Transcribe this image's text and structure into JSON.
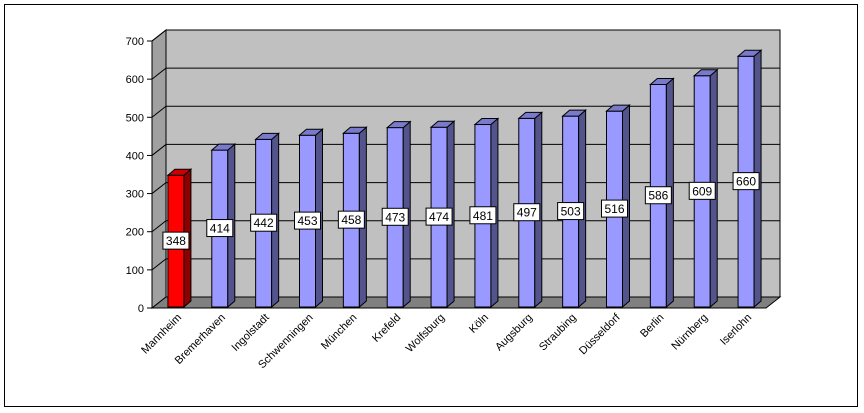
{
  "chart_data": {
    "type": "bar",
    "title": "",
    "xlabel": "",
    "ylabel": "",
    "ylim": [
      0,
      700
    ],
    "yticks": [
      0,
      100,
      200,
      300,
      400,
      500,
      600,
      700
    ],
    "grid": true,
    "legend": "none",
    "categories": [
      "Mannheim",
      "Bremerhaven",
      "Ingolstadt",
      "Schwenningen",
      "München",
      "Krefeld",
      "Wolfsburg",
      "Köln",
      "Augsburg",
      "Straubing",
      "Düsseldorf",
      "Berlin",
      "Nürnberg",
      "Iserlohn"
    ],
    "values": [
      348,
      414,
      442,
      453,
      458,
      473,
      474,
      481,
      497,
      503,
      516,
      586,
      609,
      660
    ],
    "colors": {
      "highlight": "#ff0000",
      "bar": "#9999ff",
      "wall": "#c0c0c0",
      "floor": "#808080"
    },
    "highlight_index": 0
  }
}
